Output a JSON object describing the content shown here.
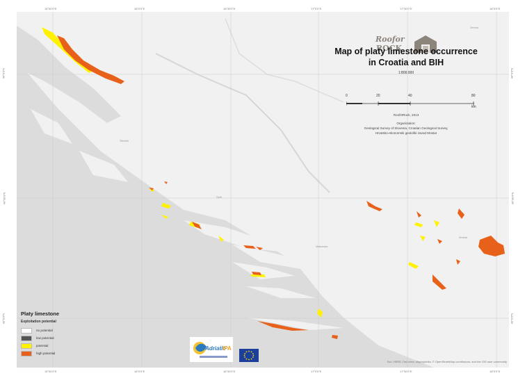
{
  "map": {
    "title_line1": "Map of platy limestone occurrence",
    "title_line2": "in Croatia and BIH",
    "scale": "1:800.000",
    "scalebar_labels": [
      "0",
      "20",
      "40",
      "80"
    ],
    "scalebar_unit": "km",
    "copyright": "RoofORock, 2013",
    "credits_heading": "Organization:",
    "credits_line1": "Geological Survey of Slovenia, Croatian Geological Survey,",
    "credits_line2": "Hrvatsko-ekonomski geološki zavod Mostar",
    "attribution": "Esri, HERE, DeLorme, MapmyIndia, © OpenStreetMap contributors, and the GIS user community"
  },
  "logo": {
    "line1": "Roofor",
    "line2": "ROCK"
  },
  "legend": {
    "title": "Platy limestone",
    "subtitle": "Exploitation potential",
    "items": [
      {
        "label": "no potential",
        "color": "#ffffff"
      },
      {
        "label": "low potential",
        "color": "#555555"
      },
      {
        "label": "potential",
        "color": "#fff200"
      },
      {
        "label": "high potential",
        "color": "#e8611a"
      }
    ]
  },
  "places": {
    "north_right": "Zenica",
    "mid_left": "Šibenik",
    "split": "Split",
    "makarska": "Makarska",
    "mostar": "Mostar"
  },
  "graticule": {
    "top": [
      "15°30'0\"E",
      "16°0'0\"E",
      "16°30'0\"E",
      "17°0'0\"E",
      "17°30'0\"E",
      "18°0'0\"E"
    ],
    "left": [
      "44°0'0\"N",
      "43°30'0\"N",
      "43°0'0\"N"
    ]
  },
  "colors": {
    "water": "#dcdcdc",
    "land": "#f1f1f1",
    "potential": "#fff200",
    "high": "#e8611a",
    "low": "#555555"
  }
}
